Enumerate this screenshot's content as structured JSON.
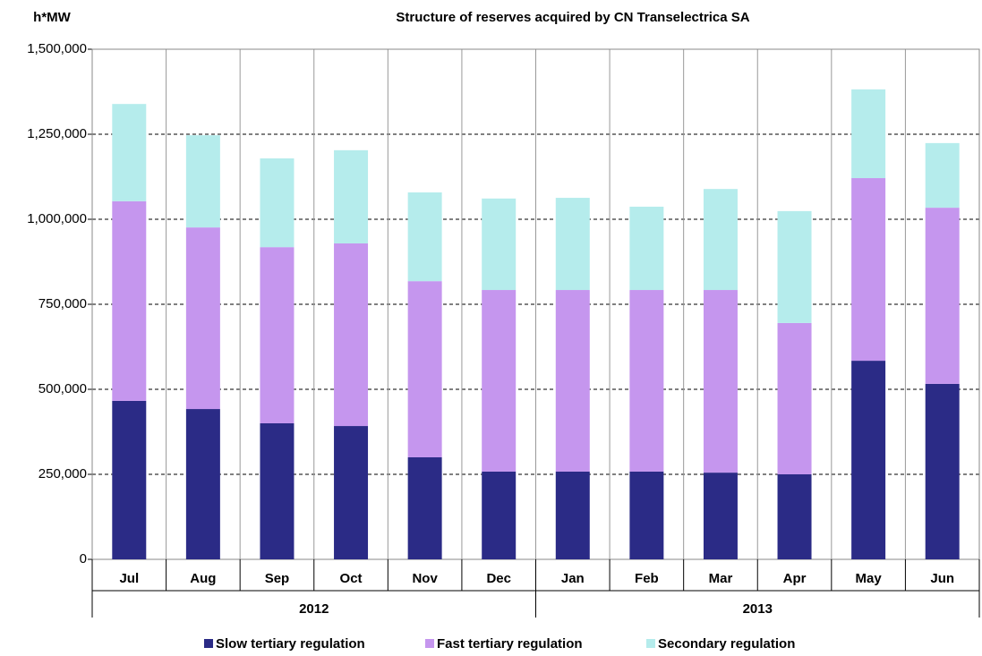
{
  "chart_data": {
    "type": "stacked-bar",
    "title": "Structure of reserves acquired by CN Transelectrica SA",
    "y_axis_label": "h*MW",
    "categories": [
      "Jul",
      "Aug",
      "Sep",
      "Oct",
      "Nov",
      "Dec",
      "Jan",
      "Feb",
      "Mar",
      "Apr",
      "May",
      "Jun"
    ],
    "year_labels": [
      "2012",
      "2013"
    ],
    "series": [
      {
        "name": "Slow tertiary regulation",
        "color": "#2b2b86",
        "values": [
          466000,
          442000,
          400000,
          392000,
          300000,
          258000,
          258000,
          258000,
          255000,
          250000,
          584000,
          516000
        ]
      },
      {
        "name": "Fast tertiary regulation",
        "color": "#c596ee",
        "values": [
          587000,
          534000,
          518000,
          537000,
          518000,
          534000,
          534000,
          534000,
          537000,
          445000,
          537000,
          518000
        ]
      },
      {
        "name": "Secondary regulation",
        "color": "#b5ecec",
        "values": [
          286000,
          271000,
          261000,
          274000,
          261000,
          269000,
          271000,
          245000,
          297000,
          329000,
          261000,
          190000
        ]
      }
    ],
    "ylim": [
      0,
      1500000
    ],
    "yticks": [
      0,
      {
        "value": 250000,
        "label": "250,000"
      },
      {
        "value": 500000,
        "label": "500,000"
      },
      {
        "value": 750000,
        "label": "750,000"
      },
      {
        "value": 1000000,
        "label": "1,000,000"
      },
      {
        "value": 1250000,
        "label": "1,250,000"
      },
      {
        "value": 1500000,
        "label": "1,500,000"
      }
    ],
    "grid": true,
    "legend": "bottom"
  }
}
